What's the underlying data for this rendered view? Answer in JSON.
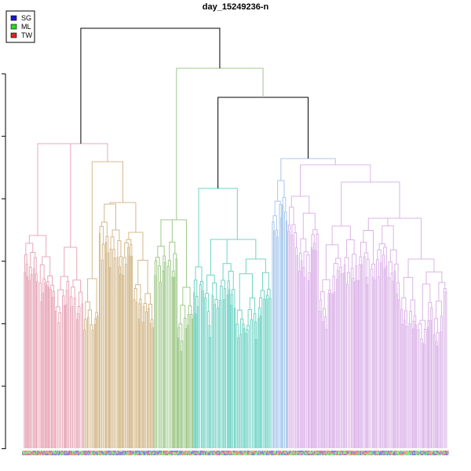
{
  "chart_data": {
    "type": "dendrogram",
    "title": "day_15249236-n",
    "xlabel": "",
    "ylabel": "",
    "y_ticks_labeled": false,
    "y_tick_count": 7,
    "legend": {
      "placement": "top-left",
      "entries": [
        {
          "label": "SG",
          "color": "#1a1acc"
        },
        {
          "label": "ML",
          "color": "#22dd22"
        },
        {
          "label": "TW",
          "color": "#dd2222"
        }
      ]
    },
    "clusters": [
      {
        "id": "pink",
        "color": "#e8a8b8",
        "leaf_span": [
          30,
          106
        ]
      },
      {
        "id": "tan",
        "color": "#d4b98c",
        "leaf_span": [
          106,
          196
        ]
      },
      {
        "id": "green",
        "color": "#9fc98a",
        "leaf_span": [
          196,
          246
        ]
      },
      {
        "id": "teal",
        "color": "#6fd3c5",
        "leaf_span": [
          246,
          346
        ]
      },
      {
        "id": "blue",
        "color": "#a8c8ec",
        "leaf_span": [
          346,
          366
        ]
      },
      {
        "id": "violet",
        "color": "#dcb4e8",
        "leaf_span": [
          366,
          570
        ]
      }
    ],
    "top_merges_color": "#000000"
  }
}
